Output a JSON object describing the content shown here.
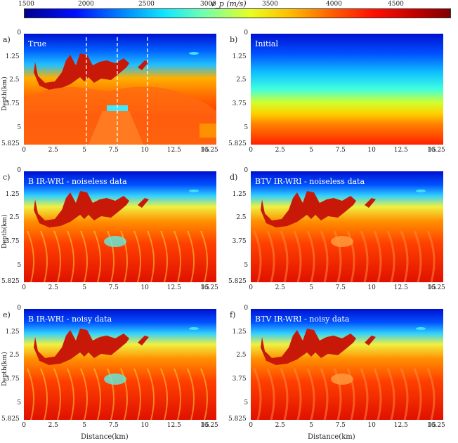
{
  "colorbar": {
    "title": "v_p (m/s)",
    "ticks": [
      "1500",
      "2000",
      "2500",
      "3000",
      "3500",
      "4000",
      "4500"
    ]
  },
  "panels": [
    {
      "id": "a",
      "label": "a)",
      "title": "True"
    },
    {
      "id": "b",
      "label": "b)",
      "title": "Initial"
    },
    {
      "id": "c",
      "label": "c)",
      "title": "B IR-WRI - noiseless data"
    },
    {
      "id": "d",
      "label": "d)",
      "title": "BTV IR-WRI - noiseless data"
    },
    {
      "id": "e",
      "label": "e)",
      "title": "B IR-WRI - noisy data"
    },
    {
      "id": "f",
      "label": "f)",
      "title": "BTV IR-WRI - noisy data"
    }
  ],
  "axes": {
    "ylabel": "Depth(km)",
    "xlabel": "Distance(km)",
    "yticks": [
      "0",
      "1.25",
      "2.5",
      "3.75",
      "5",
      "5.825"
    ],
    "xticks": [
      "0",
      "2.5",
      "5",
      "7.5",
      "10",
      "12.5",
      "15",
      "16.25"
    ]
  },
  "colors": {
    "deep_blue": "#0010c8",
    "red_salt": "#c81000",
    "yellow": "#f0e000",
    "orange": "#ff8000"
  }
}
